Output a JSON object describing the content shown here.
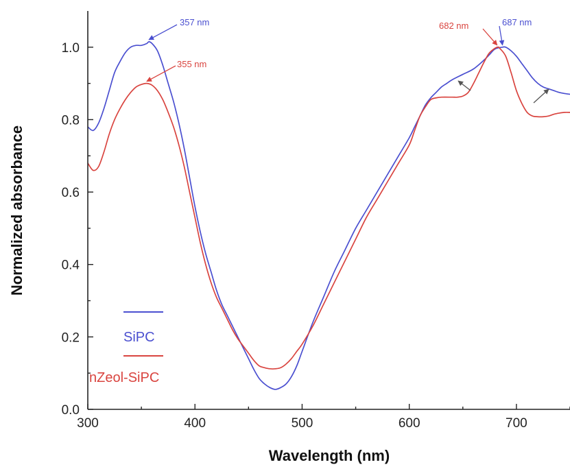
{
  "chart_data": {
    "type": "line",
    "xlabel": "Wavelength (nm)",
    "ylabel": "Normalized absorbance",
    "xlim": [
      300,
      750
    ],
    "ylim": [
      0.0,
      1.1
    ],
    "x_ticks": [
      300,
      400,
      500,
      600,
      700
    ],
    "x_tick_labels": [
      "300",
      "400",
      "500",
      "600",
      "700"
    ],
    "y_ticks": [
      0.0,
      0.2,
      0.4,
      0.6,
      0.8,
      1.0
    ],
    "y_tick_labels": [
      "0.0",
      "0.2",
      "0.4",
      "0.6",
      "0.8",
      "1.0"
    ],
    "grid": false,
    "legend_position": "bottom-left",
    "series": [
      {
        "name": "SiPC",
        "color": "#4a4fd0",
        "points": [
          [
            300,
            0.78
          ],
          [
            305,
            0.77
          ],
          [
            310,
            0.79
          ],
          [
            315,
            0.83
          ],
          [
            320,
            0.88
          ],
          [
            325,
            0.93
          ],
          [
            330,
            0.96
          ],
          [
            335,
            0.985
          ],
          [
            340,
            1.0
          ],
          [
            345,
            1.005
          ],
          [
            350,
            1.005
          ],
          [
            355,
            1.01
          ],
          [
            357,
            1.015
          ],
          [
            360,
            1.01
          ],
          [
            365,
            0.99
          ],
          [
            370,
            0.95
          ],
          [
            375,
            0.9
          ],
          [
            380,
            0.85
          ],
          [
            385,
            0.79
          ],
          [
            390,
            0.72
          ],
          [
            395,
            0.64
          ],
          [
            400,
            0.56
          ],
          [
            405,
            0.49
          ],
          [
            410,
            0.43
          ],
          [
            415,
            0.38
          ],
          [
            420,
            0.33
          ],
          [
            425,
            0.29
          ],
          [
            430,
            0.26
          ],
          [
            435,
            0.23
          ],
          [
            440,
            0.2
          ],
          [
            445,
            0.17
          ],
          [
            450,
            0.14
          ],
          [
            455,
            0.11
          ],
          [
            460,
            0.085
          ],
          [
            465,
            0.07
          ],
          [
            470,
            0.06
          ],
          [
            475,
            0.055
          ],
          [
            480,
            0.06
          ],
          [
            485,
            0.07
          ],
          [
            490,
            0.09
          ],
          [
            495,
            0.12
          ],
          [
            500,
            0.16
          ],
          [
            510,
            0.24
          ],
          [
            520,
            0.31
          ],
          [
            530,
            0.38
          ],
          [
            540,
            0.44
          ],
          [
            550,
            0.5
          ],
          [
            560,
            0.55
          ],
          [
            570,
            0.6
          ],
          [
            580,
            0.65
          ],
          [
            590,
            0.7
          ],
          [
            600,
            0.75
          ],
          [
            605,
            0.78
          ],
          [
            610,
            0.81
          ],
          [
            615,
            0.84
          ],
          [
            620,
            0.86
          ],
          [
            625,
            0.875
          ],
          [
            630,
            0.89
          ],
          [
            635,
            0.9
          ],
          [
            640,
            0.91
          ],
          [
            650,
            0.925
          ],
          [
            660,
            0.94
          ],
          [
            670,
            0.965
          ],
          [
            675,
            0.98
          ],
          [
            680,
            0.995
          ],
          [
            687,
            1.0
          ],
          [
            690,
            1.0
          ],
          [
            695,
            0.99
          ],
          [
            700,
            0.975
          ],
          [
            705,
            0.955
          ],
          [
            710,
            0.935
          ],
          [
            715,
            0.915
          ],
          [
            720,
            0.9
          ],
          [
            725,
            0.89
          ],
          [
            730,
            0.885
          ],
          [
            735,
            0.88
          ],
          [
            740,
            0.875
          ],
          [
            745,
            0.872
          ],
          [
            750,
            0.87
          ]
        ]
      },
      {
        "name": "nZeol-SiPC",
        "color": "#d9443f",
        "points": [
          [
            300,
            0.68
          ],
          [
            305,
            0.66
          ],
          [
            310,
            0.67
          ],
          [
            315,
            0.71
          ],
          [
            320,
            0.76
          ],
          [
            325,
            0.8
          ],
          [
            330,
            0.83
          ],
          [
            335,
            0.855
          ],
          [
            340,
            0.875
          ],
          [
            345,
            0.89
          ],
          [
            350,
            0.897
          ],
          [
            355,
            0.9
          ],
          [
            360,
            0.895
          ],
          [
            365,
            0.88
          ],
          [
            370,
            0.855
          ],
          [
            375,
            0.82
          ],
          [
            380,
            0.78
          ],
          [
            385,
            0.73
          ],
          [
            390,
            0.67
          ],
          [
            395,
            0.6
          ],
          [
            400,
            0.53
          ],
          [
            405,
            0.46
          ],
          [
            410,
            0.4
          ],
          [
            415,
            0.35
          ],
          [
            420,
            0.31
          ],
          [
            425,
            0.28
          ],
          [
            430,
            0.25
          ],
          [
            435,
            0.22
          ],
          [
            440,
            0.195
          ],
          [
            445,
            0.175
          ],
          [
            450,
            0.155
          ],
          [
            455,
            0.135
          ],
          [
            460,
            0.12
          ],
          [
            465,
            0.115
          ],
          [
            470,
            0.112
          ],
          [
            475,
            0.112
          ],
          [
            480,
            0.115
          ],
          [
            485,
            0.125
          ],
          [
            490,
            0.14
          ],
          [
            495,
            0.16
          ],
          [
            500,
            0.18
          ],
          [
            510,
            0.23
          ],
          [
            520,
            0.29
          ],
          [
            530,
            0.35
          ],
          [
            540,
            0.41
          ],
          [
            550,
            0.47
          ],
          [
            560,
            0.53
          ],
          [
            570,
            0.58
          ],
          [
            580,
            0.63
          ],
          [
            590,
            0.68
          ],
          [
            600,
            0.73
          ],
          [
            605,
            0.77
          ],
          [
            610,
            0.81
          ],
          [
            615,
            0.835
          ],
          [
            620,
            0.855
          ],
          [
            625,
            0.86
          ],
          [
            630,
            0.862
          ],
          [
            640,
            0.862
          ],
          [
            645,
            0.862
          ],
          [
            650,
            0.865
          ],
          [
            655,
            0.875
          ],
          [
            660,
            0.9
          ],
          [
            665,
            0.93
          ],
          [
            670,
            0.96
          ],
          [
            675,
            0.985
          ],
          [
            682,
            1.0
          ],
          [
            685,
            0.995
          ],
          [
            690,
            0.975
          ],
          [
            695,
            0.93
          ],
          [
            700,
            0.88
          ],
          [
            705,
            0.845
          ],
          [
            710,
            0.82
          ],
          [
            715,
            0.81
          ],
          [
            720,
            0.808
          ],
          [
            725,
            0.808
          ],
          [
            730,
            0.81
          ],
          [
            735,
            0.815
          ],
          [
            740,
            0.818
          ],
          [
            745,
            0.82
          ],
          [
            750,
            0.82
          ]
        ]
      }
    ],
    "annotations": [
      {
        "text": "357 nm",
        "x": 357,
        "y": 1.015,
        "color": "#4a4fd0"
      },
      {
        "text": "355 nm",
        "x": 355,
        "y": 0.9,
        "color": "#d9443f"
      },
      {
        "text": "682 nm",
        "x": 682,
        "y": 1.0,
        "color": "#d9443f"
      },
      {
        "text": "687 nm",
        "x": 687,
        "y": 1.0,
        "color": "#4a4fd0"
      }
    ]
  }
}
